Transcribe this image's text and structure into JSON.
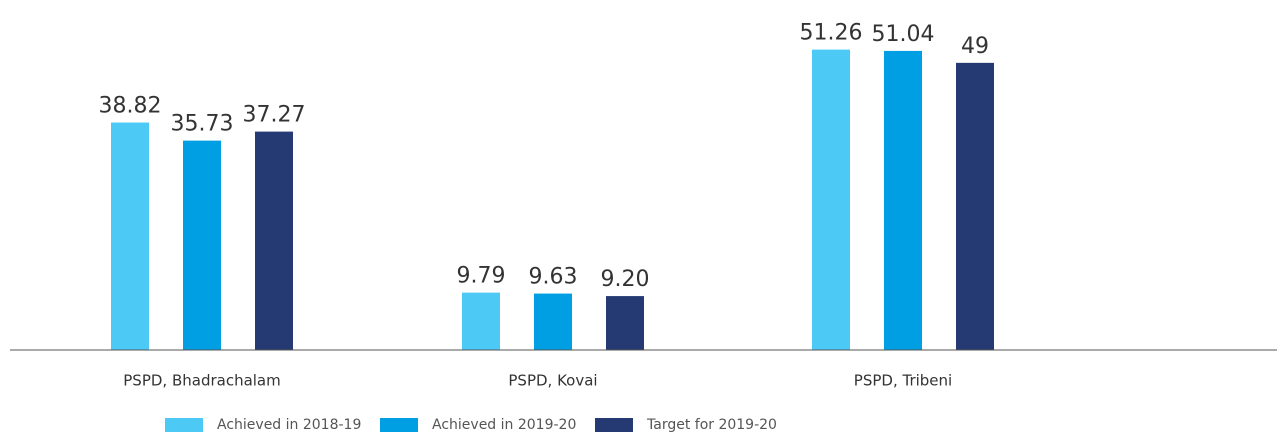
{
  "chart_data": {
    "type": "bar",
    "categories": [
      "PSPD, Bhadrachalam",
      "PSPD, Kovai",
      "PSPD, Tribeni"
    ],
    "series": [
      {
        "name": "Achieved in 2018-19",
        "color": "#4dc9f6",
        "values": [
          38.82,
          9.79,
          51.26
        ]
      },
      {
        "name": "Achieved in 2019-20",
        "color": "#009fe3",
        "values": [
          35.73,
          9.63,
          51.04
        ]
      },
      {
        "name": "Target for 2019-20",
        "color": "#253a73",
        "values": [
          37.27,
          9.2,
          49
        ],
        "value_labels": [
          "37.27",
          "9.20",
          "49"
        ]
      }
    ]
  }
}
